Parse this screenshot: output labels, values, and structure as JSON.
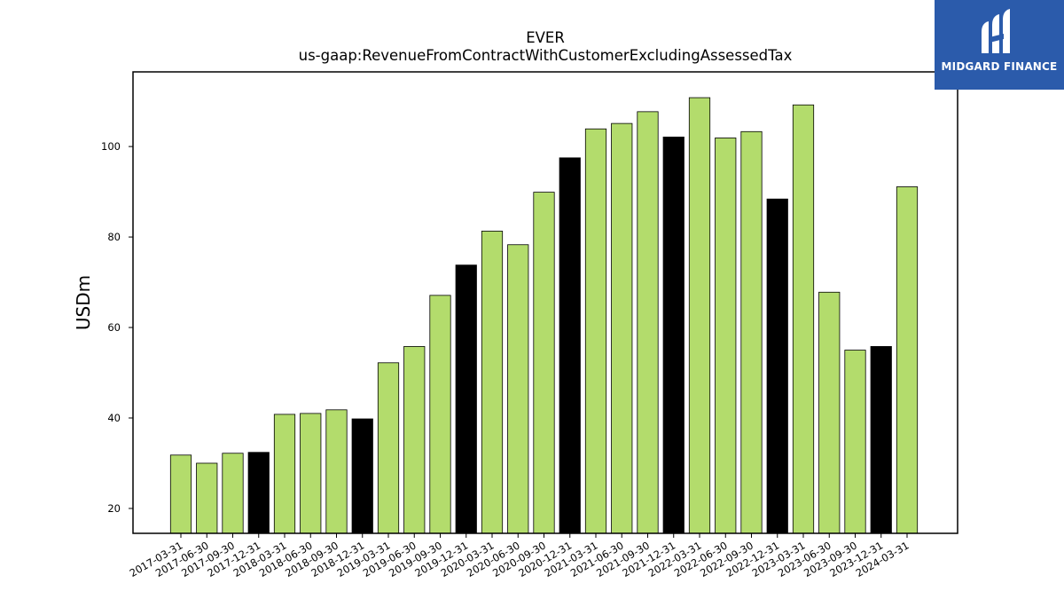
{
  "chart_data": {
    "type": "bar",
    "title": "EVER",
    "subtitle": "us-gaap:RevenueFromContractWithCustomerExcludingAssessedTax",
    "xlabel": "",
    "ylabel": "USDm",
    "ylim": [
      14.5,
      116.5
    ],
    "yticks": [
      20,
      40,
      60,
      80,
      100
    ],
    "grid": false,
    "categories": [
      "2017-03-31",
      "2017-06-30",
      "2017-09-30",
      "2017-12-31",
      "2018-03-31",
      "2018-06-30",
      "2018-09-30",
      "2018-12-31",
      "2019-03-31",
      "2019-06-30",
      "2019-09-30",
      "2019-12-31",
      "2020-03-31",
      "2020-06-30",
      "2020-09-30",
      "2020-12-31",
      "2021-03-31",
      "2021-06-30",
      "2021-09-30",
      "2021-12-31",
      "2022-03-31",
      "2022-06-30",
      "2022-09-30",
      "2022-12-31",
      "2023-03-31",
      "2023-06-30",
      "2023-09-30",
      "2023-12-31",
      "2024-03-31"
    ],
    "values": [
      31.8,
      30.0,
      32.2,
      32.4,
      40.8,
      41.0,
      41.8,
      39.8,
      52.2,
      55.8,
      67.1,
      73.8,
      81.3,
      78.3,
      89.9,
      97.5,
      103.9,
      105.1,
      107.7,
      102.1,
      110.8,
      101.9,
      103.3,
      88.4,
      109.2,
      67.8,
      55.0,
      55.8,
      91.1
    ],
    "colors": {
      "bar_default": "#b3dc6c",
      "bar_q4": "#000000",
      "bar_edge": "#000000"
    },
    "q4_categories": [
      "2017-12-31",
      "2018-12-31",
      "2019-12-31",
      "2020-12-31",
      "2021-12-31",
      "2022-12-31",
      "2023-12-31"
    ]
  },
  "logo": {
    "text": "MIDGARD FINANCE",
    "background": "#2b5bab",
    "icon": "midgard-logo-icon"
  }
}
